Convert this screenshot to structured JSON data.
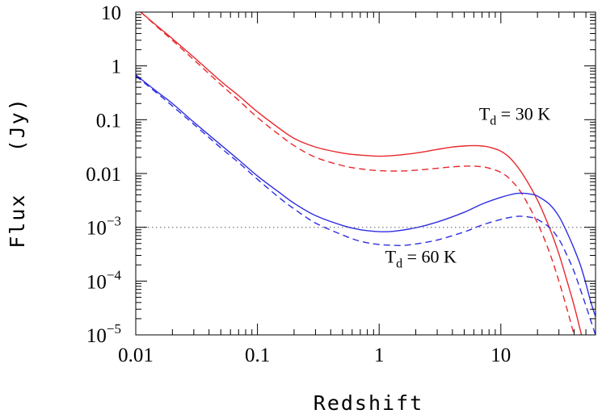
{
  "chart_data": {
    "type": "line",
    "title": "",
    "xlabel": "Redshift",
    "ylabel": "Flux   (Jy)",
    "xscale": "log",
    "yscale": "log",
    "xlim": [
      0.01,
      60
    ],
    "ylim": [
      1e-05,
      10
    ],
    "grid": false,
    "x_ticks": [
      {
        "value": 0.01,
        "label": "0.01"
      },
      {
        "value": 0.1,
        "label": "0.1"
      },
      {
        "value": 1,
        "label": "1"
      },
      {
        "value": 10,
        "label": "10"
      }
    ],
    "y_ticks": [
      {
        "value": 10,
        "label": "10",
        "exp": ""
      },
      {
        "value": 1,
        "label": "1",
        "exp": ""
      },
      {
        "value": 0.1,
        "label": "0.1",
        "exp": ""
      },
      {
        "value": 0.01,
        "label": "0.01",
        "exp": ""
      },
      {
        "value": 0.001,
        "label": "10",
        "exp": "−3"
      },
      {
        "value": 0.0001,
        "label": "10",
        "exp": "−4"
      },
      {
        "value": 1e-05,
        "label": "10",
        "exp": "−5"
      }
    ],
    "reference_line": {
      "y": 0.001,
      "color": "#888888",
      "style": "dotted"
    },
    "series": [
      {
        "color": "#e8282c",
        "style": "solid",
        "points": [
          [
            0.011,
            10
          ],
          [
            0.015,
            5.5
          ],
          [
            0.02,
            3.2
          ],
          [
            0.03,
            1.45
          ],
          [
            0.05,
            0.52
          ],
          [
            0.07,
            0.28
          ],
          [
            0.1,
            0.14
          ],
          [
            0.15,
            0.07
          ],
          [
            0.2,
            0.045
          ],
          [
            0.3,
            0.031
          ],
          [
            0.5,
            0.024
          ],
          [
            0.7,
            0.022
          ],
          [
            1,
            0.021
          ],
          [
            1.3,
            0.0215
          ],
          [
            2,
            0.024
          ],
          [
            3,
            0.028
          ],
          [
            4,
            0.031
          ],
          [
            5,
            0.0325
          ],
          [
            6,
            0.033
          ],
          [
            7,
            0.0325
          ],
          [
            8,
            0.031
          ],
          [
            10,
            0.026
          ],
          [
            12,
            0.019
          ],
          [
            15,
            0.01
          ],
          [
            20,
            0.0032
          ],
          [
            25,
            0.001
          ],
          [
            30,
            0.00032
          ],
          [
            35,
            0.0001
          ],
          [
            40,
            3.5e-05
          ],
          [
            46,
            1e-05
          ]
        ]
      },
      {
        "color": "#e8282c",
        "style": "dashed",
        "points": [
          [
            0.011,
            10
          ],
          [
            0.015,
            5.3
          ],
          [
            0.02,
            3.0
          ],
          [
            0.03,
            1.3
          ],
          [
            0.05,
            0.45
          ],
          [
            0.07,
            0.23
          ],
          [
            0.1,
            0.11
          ],
          [
            0.15,
            0.053
          ],
          [
            0.2,
            0.033
          ],
          [
            0.3,
            0.02
          ],
          [
            0.5,
            0.014
          ],
          [
            0.7,
            0.0122
          ],
          [
            1,
            0.0113
          ],
          [
            1.5,
            0.0111
          ],
          [
            2,
            0.0115
          ],
          [
            3,
            0.0125
          ],
          [
            4,
            0.0133
          ],
          [
            5,
            0.0137
          ],
          [
            6,
            0.0137
          ],
          [
            7,
            0.0133
          ],
          [
            8,
            0.0126
          ],
          [
            10,
            0.0105
          ],
          [
            12,
            0.0077
          ],
          [
            15,
            0.0041
          ],
          [
            20,
            0.0012
          ],
          [
            25,
            0.00035
          ],
          [
            30,
            0.0001
          ],
          [
            35,
            3e-05
          ],
          [
            40,
            1e-05
          ]
        ]
      },
      {
        "color": "#2e2ee0",
        "style": "solid",
        "points": [
          [
            0.01,
            0.68
          ],
          [
            0.015,
            0.33
          ],
          [
            0.02,
            0.2
          ],
          [
            0.03,
            0.09
          ],
          [
            0.05,
            0.034
          ],
          [
            0.07,
            0.018
          ],
          [
            0.1,
            0.009
          ],
          [
            0.15,
            0.0045
          ],
          [
            0.2,
            0.0028
          ],
          [
            0.3,
            0.00165
          ],
          [
            0.5,
            0.00108
          ],
          [
            0.7,
            0.0009
          ],
          [
            1,
            0.00083
          ],
          [
            1.3,
            0.00084
          ],
          [
            2,
            0.00098
          ],
          [
            3,
            0.00125
          ],
          [
            5,
            0.0019
          ],
          [
            7,
            0.0027
          ],
          [
            10,
            0.0036
          ],
          [
            13,
            0.0042
          ],
          [
            15,
            0.0043
          ],
          [
            18,
            0.0041
          ],
          [
            20,
            0.0038
          ],
          [
            25,
            0.0027
          ],
          [
            30,
            0.0016
          ],
          [
            35,
            0.0008
          ],
          [
            40,
            0.0004
          ],
          [
            45,
            0.0002
          ],
          [
            50,
            9e-05
          ],
          [
            55,
            4e-05
          ],
          [
            60,
            2.2e-05
          ]
        ]
      },
      {
        "color": "#2e2ee0",
        "style": "dashed",
        "points": [
          [
            0.01,
            0.65
          ],
          [
            0.015,
            0.31
          ],
          [
            0.02,
            0.18
          ],
          [
            0.03,
            0.082
          ],
          [
            0.05,
            0.03
          ],
          [
            0.07,
            0.016
          ],
          [
            0.1,
            0.0078
          ],
          [
            0.15,
            0.0036
          ],
          [
            0.2,
            0.0022
          ],
          [
            0.3,
            0.0012
          ],
          [
            0.5,
            0.00072
          ],
          [
            0.7,
            0.00055
          ],
          [
            1,
            0.00048
          ],
          [
            1.5,
            0.00046
          ],
          [
            2,
            0.00049
          ],
          [
            3,
            0.00058
          ],
          [
            5,
            0.00082
          ],
          [
            7,
            0.0011
          ],
          [
            10,
            0.0014
          ],
          [
            13,
            0.00158
          ],
          [
            15,
            0.0016
          ],
          [
            18,
            0.00152
          ],
          [
            20,
            0.0014
          ],
          [
            25,
            0.001
          ],
          [
            30,
            0.0006
          ],
          [
            35,
            0.0003
          ],
          [
            40,
            0.00015
          ],
          [
            45,
            7e-05
          ],
          [
            50,
            3.5e-05
          ],
          [
            55,
            1.8e-05
          ],
          [
            60,
            1e-05
          ]
        ]
      }
    ],
    "annotations": [
      {
        "text": "T",
        "sub": "d",
        "rest": " = 30 K",
        "x": 13,
        "y": 0.1
      },
      {
        "text": "T",
        "sub": "d",
        "rest": " = 60 K",
        "x": 2.2,
        "y": 0.00022
      }
    ]
  }
}
